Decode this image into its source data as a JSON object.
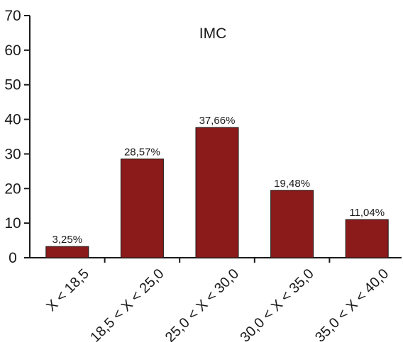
{
  "chart_data": {
    "type": "bar",
    "title": "IMC",
    "categories": [
      "X < 18,5",
      "18,5 < X < 25,0",
      "25,0 < X < 30,0",
      "30,0 < X < 35,0",
      "35,0 < X < 40,0"
    ],
    "values": [
      3.25,
      28.57,
      37.66,
      19.48,
      11.04
    ],
    "data_labels": [
      "3,25%",
      "28,57%",
      "37,66%",
      "19,48%",
      "11,04%"
    ],
    "yticks": [
      "0",
      "10",
      "20",
      "30",
      "40",
      "50",
      "60",
      "70"
    ],
    "ylim": [
      0,
      70
    ],
    "xlabel": "",
    "ylabel": "",
    "grid": false,
    "bar_color": "#8b1a1a"
  }
}
